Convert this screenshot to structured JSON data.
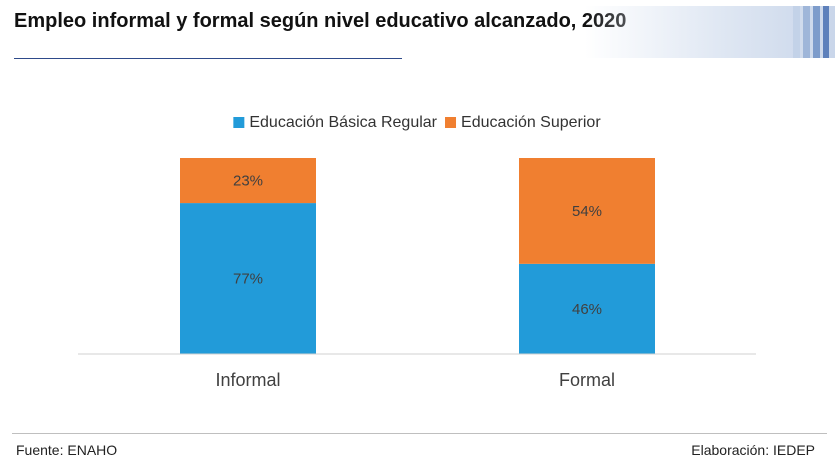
{
  "title": "Empleo informal y formal según nivel educativo alcanzado, 2020",
  "footer": {
    "source": "Fuente: ENAHO",
    "credit": "Elaboración: IEDEP"
  },
  "colors": {
    "basica": "#229bd9",
    "superior": "#f07f30",
    "axis": "#d0d0d0",
    "accent": "#2e4a8a"
  },
  "chart_data": {
    "type": "bar",
    "stacked": true,
    "percent_stacked": true,
    "categories": [
      "Informal",
      "Formal"
    ],
    "series": [
      {
        "name": "Educación Básica Regular",
        "values": [
          77,
          46
        ],
        "labels": [
          "77%",
          "46%"
        ]
      },
      {
        "name": "Educación Superior",
        "values": [
          23,
          54
        ],
        "labels": [
          "23%",
          "54%"
        ]
      }
    ],
    "ylim": [
      0,
      100
    ],
    "grid": false,
    "legend": "top-center"
  }
}
